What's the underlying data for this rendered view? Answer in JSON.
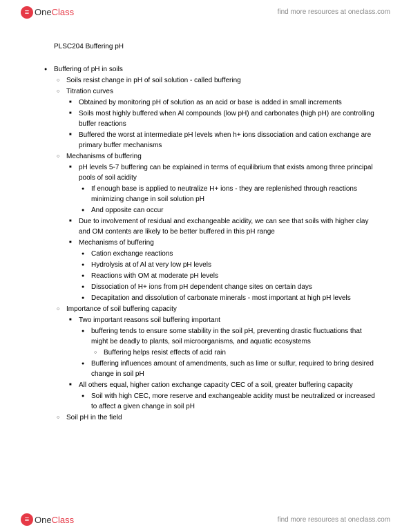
{
  "brand": {
    "icon": "≡",
    "name_part1": "One",
    "name_part2": "Class",
    "tagline": "find more resources at oneclass.com"
  },
  "doc": {
    "title": "PLSC204  Buffering pH",
    "outline": {
      "i1": "Buffering of pH in soils",
      "i1_1": "Soils resist change in pH of soil solution - called buffering",
      "i1_2": "Titration curves",
      "i1_2_1": "Obtained by monitoring pH of solution as an acid or base is added in small increments",
      "i1_2_2": "Soils most highly buffered when Al compounds (low pH) and carbonates (high pH) are controlling buffer reactions",
      "i1_2_3": "Buffered the worst at intermediate pH levels when h+ ions dissociation and cation exchange are primary buffer mechanisms",
      "i1_3": "Mechanisms of buffering",
      "i1_3_1": "pH levels 5-7 buffering can be explained in terms of equilibrium that exists among three principal pools of soil acidity",
      "i1_3_1_1": "If enough base is applied to neutralize H+ ions - they are replenished through reactions minimizing change in soil solution pH",
      "i1_3_1_2": "And opposite can occur",
      "i1_3_2": "Due to involvement of residual and exchangeable acidity, we can see that soils with higher clay and OM contents are likely to be better buffered in this pH range",
      "i1_3_3": "Mechanisms of buffering",
      "i1_3_3_1": "Cation exchange reactions",
      "i1_3_3_2": "Hydrolysis at of Al at very low pH levels",
      "i1_3_3_3": "Reactions with OM at moderate pH levels",
      "i1_3_3_4": "Dissociation of H+ ions from pH dependent change sites on certain days",
      "i1_3_3_5": "Decapitation and dissolution of carbonate minerals - most important at high pH levels",
      "i1_4": "Importance of soil buffering capacity",
      "i1_4_1": "Two important reasons soil buffering important",
      "i1_4_1_1": "buffering tends to ensure some stability in the soil pH, preventing drastic fluctuations that might be deadly to plants, soil microorganisms, and aquatic ecosystems",
      "i1_4_1_1_1": "Buffering helps resist effects of acid rain",
      "i1_4_1_2": "Buffering influences amount of amendments, such as lime or sulfur, required to bring desired change in soil pH",
      "i1_4_2": "All others equal, higher cation exchange capacity CEC of a soil, greater buffering capacity",
      "i1_4_2_1": "Soil with high CEC, more reserve and exchangeable acidity must be neutralized or increased to affect a given change in soil pH",
      "i1_5": "Soil pH in the field"
    }
  }
}
